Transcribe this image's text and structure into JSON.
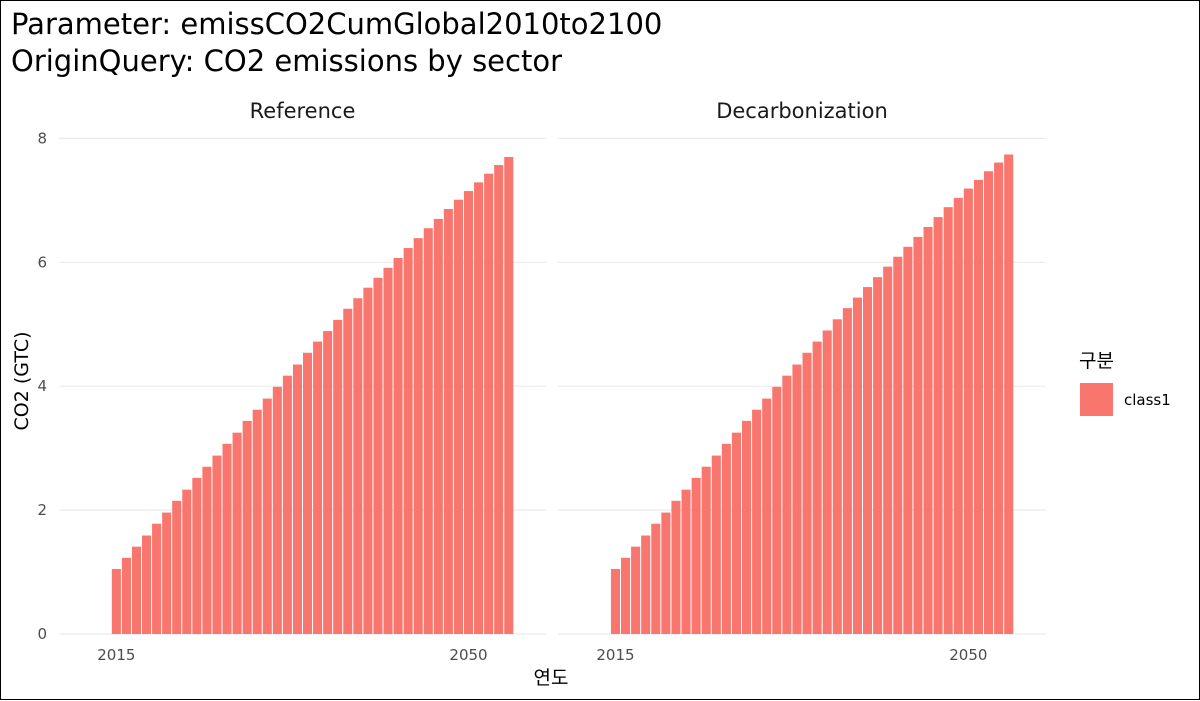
{
  "chart_data": {
    "type": "bar",
    "title": "Parameter: emissCO2CumGlobal2010to2100",
    "subtitle": "OriginQuery: CO2 emissions by sector",
    "xlabel": "연도",
    "ylabel": "CO2 (GTC)",
    "ylim": [
      0,
      8.2
    ],
    "xlim": [
      2009.3,
      2057.7
    ],
    "x_ticks": [
      2015,
      2050
    ],
    "y_ticks": [
      0,
      2,
      4,
      6,
      8
    ],
    "grid": true,
    "legend": {
      "title": "구분",
      "position": "right",
      "entries": [
        "class1"
      ]
    },
    "bar_color": "#F8766D",
    "x": [
      2015,
      2016,
      2017,
      2018,
      2019,
      2020,
      2021,
      2022,
      2023,
      2024,
      2025,
      2026,
      2027,
      2028,
      2029,
      2030,
      2031,
      2032,
      2033,
      2034,
      2035,
      2036,
      2037,
      2038,
      2039,
      2040,
      2041,
      2042,
      2043,
      2044,
      2045,
      2046,
      2047,
      2048,
      2049,
      2050,
      2051,
      2052,
      2053,
      2054
    ],
    "panels": [
      {
        "name": "Reference",
        "values": [
          1.05,
          1.23,
          1.41,
          1.59,
          1.78,
          1.96,
          2.15,
          2.33,
          2.52,
          2.7,
          2.88,
          3.07,
          3.25,
          3.44,
          3.62,
          3.8,
          3.99,
          4.17,
          4.35,
          4.54,
          4.72,
          4.89,
          5.07,
          5.25,
          5.42,
          5.59,
          5.75,
          5.91,
          6.07,
          6.23,
          6.39,
          6.55,
          6.7,
          6.86,
          7.01,
          7.15,
          7.29,
          7.43,
          7.57,
          7.7
        ]
      },
      {
        "name": "Decarbonization",
        "values": [
          1.05,
          1.23,
          1.41,
          1.59,
          1.78,
          1.96,
          2.15,
          2.33,
          2.52,
          2.7,
          2.88,
          3.07,
          3.25,
          3.44,
          3.62,
          3.8,
          3.99,
          4.17,
          4.35,
          4.54,
          4.72,
          4.9,
          5.08,
          5.26,
          5.43,
          5.6,
          5.76,
          5.93,
          6.09,
          6.25,
          6.41,
          6.57,
          6.73,
          6.89,
          7.04,
          7.19,
          7.33,
          7.47,
          7.61,
          7.74
        ]
      }
    ]
  }
}
